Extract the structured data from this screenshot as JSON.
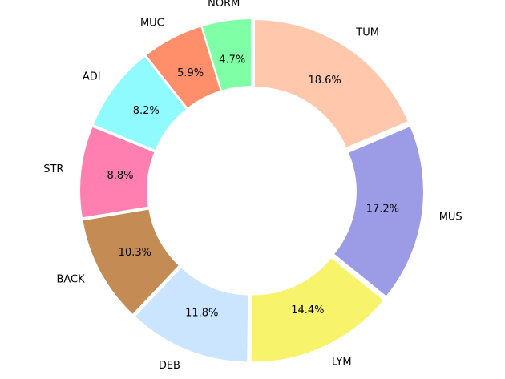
{
  "chart_data": {
    "type": "pie",
    "style": "donut",
    "title": "",
    "categories": [
      "TUM",
      "MUS",
      "LYM",
      "DEB",
      "BACK",
      "STR",
      "ADI",
      "MUC",
      "NORM"
    ],
    "values": [
      18.6,
      17.2,
      14.4,
      11.8,
      10.3,
      8.8,
      8.2,
      5.9,
      4.7
    ],
    "value_labels": [
      "18.6%",
      "17.2%",
      "14.4%",
      "11.8%",
      "10.3%",
      "8.8%",
      "8.2%",
      "5.9%",
      "4.7%"
    ],
    "colors": [
      "#ffc8ad",
      "#9b9be6",
      "#f7f36b",
      "#cce5ff",
      "#c48c54",
      "#ff7fb0",
      "#8ffbff",
      "#ff8f6a",
      "#7fffa6"
    ],
    "start_angle_deg": 90,
    "direction": "clockwise",
    "exploded": true,
    "legend": "none"
  }
}
